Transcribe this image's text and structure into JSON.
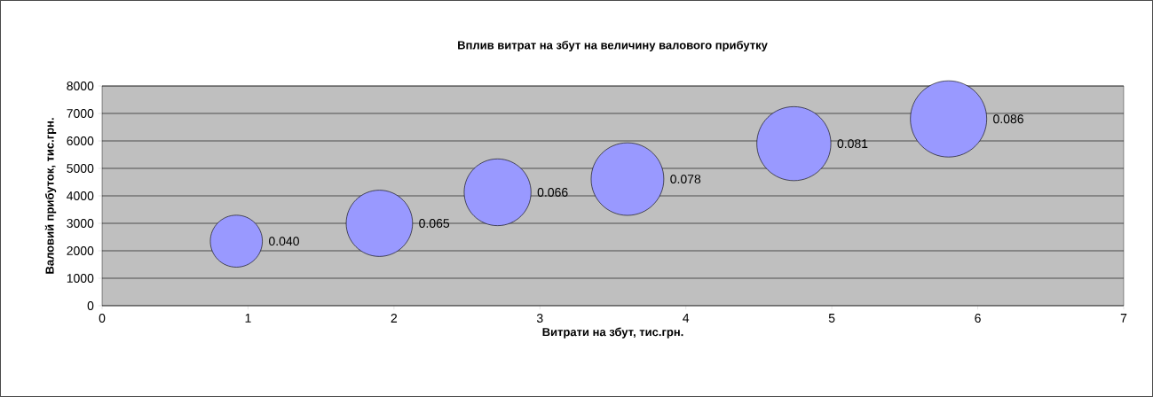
{
  "chart_data": {
    "type": "bubble",
    "title": "Вплив витрат на збут на величину валового прибутку",
    "xlabel": "Витрати на збут, тис.грн.",
    "ylabel": "Валовий прибуток, тис.грн.",
    "x": [
      0.92,
      1.9,
      2.71,
      3.6,
      4.74,
      5.8
    ],
    "values": [
      2350,
      3000,
      4130,
      4610,
      5900,
      6800
    ],
    "sizes": [
      0.04,
      0.065,
      0.066,
      0.078,
      0.081,
      0.086
    ],
    "value_labels": [
      "0.040",
      "0.065",
      "0.066",
      "0.078",
      "0.081",
      "0.086"
    ],
    "color": "#9999ff",
    "xlim": [
      0,
      7
    ],
    "xticks": [
      0,
      1,
      2,
      3,
      4,
      5,
      6,
      7
    ],
    "ylim": [
      0,
      8000
    ],
    "yticks": [
      0,
      1000,
      2000,
      3000,
      4000,
      5000,
      6000,
      7000,
      8000
    ],
    "grid": "y"
  }
}
